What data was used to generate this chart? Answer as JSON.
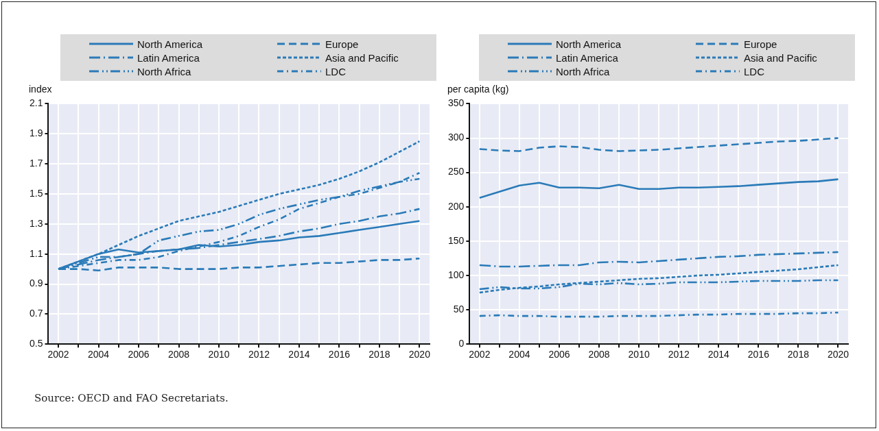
{
  "chart_data": [
    {
      "type": "line",
      "ylabel": "index",
      "legend": "top",
      "grid": true,
      "marker": "none",
      "x": [
        2002,
        2003,
        2004,
        2005,
        2006,
        2007,
        2008,
        2009,
        2010,
        2011,
        2012,
        2013,
        2014,
        2015,
        2016,
        2017,
        2018,
        2019,
        2020
      ],
      "xlim": [
        2001.5,
        2020.5
      ],
      "xticks": [
        2002,
        {
          "value": 2003,
          "label": null
        },
        2004,
        {
          "value": 2005,
          "label": null
        },
        2006,
        {
          "value": 2007,
          "label": null
        },
        2008,
        {
          "value": 2009,
          "label": null
        },
        2010,
        {
          "value": 2011,
          "label": null
        },
        2012,
        {
          "value": 2013,
          "label": null
        },
        2014,
        {
          "value": 2015,
          "label": null
        },
        2016,
        {
          "value": 2017,
          "label": null
        },
        2018,
        {
          "value": 2019,
          "label": null
        },
        2020
      ],
      "ylim": [
        0.5,
        2.1
      ],
      "yticks": [
        0.5,
        0.7,
        0.9,
        1.1,
        1.3,
        1.5,
        1.7,
        1.9,
        2.1
      ],
      "series": [
        {
          "name": "North America",
          "color": "#2a7ab8",
          "line_style": "solid",
          "values": [
            1.0,
            1.05,
            1.1,
            1.13,
            1.11,
            1.12,
            1.13,
            1.16,
            1.15,
            1.16,
            1.18,
            1.19,
            1.21,
            1.22,
            1.24,
            1.26,
            1.28,
            1.3,
            1.32
          ]
        },
        {
          "name": "Europe",
          "color": "#2a7ab8",
          "line_style": "dashed",
          "values": [
            1.0,
            1.0,
            0.99,
            1.01,
            1.01,
            1.01,
            1.0,
            1.0,
            1.0,
            1.01,
            1.01,
            1.02,
            1.03,
            1.04,
            1.04,
            1.05,
            1.06,
            1.06,
            1.07
          ]
        },
        {
          "name": "Latin America",
          "color": "#2a7ab8",
          "line_style": "longdashdot",
          "values": [
            1.0,
            1.03,
            1.06,
            1.08,
            1.1,
            1.12,
            1.13,
            1.14,
            1.16,
            1.18,
            1.2,
            1.22,
            1.25,
            1.27,
            1.3,
            1.32,
            1.35,
            1.37,
            1.4
          ]
        },
        {
          "name": "Asia and Pacific",
          "color": "#2a7ab8",
          "line_style": "dotted",
          "values": [
            1.0,
            1.05,
            1.1,
            1.16,
            1.22,
            1.27,
            1.32,
            1.35,
            1.38,
            1.42,
            1.46,
            1.5,
            1.53,
            1.56,
            1.6,
            1.65,
            1.71,
            1.78,
            1.85
          ]
        },
        {
          "name": "North Africa",
          "color": "#2a7ab8",
          "line_style": "dashdotdot",
          "values": [
            1.0,
            1.04,
            1.08,
            1.08,
            1.1,
            1.19,
            1.22,
            1.25,
            1.26,
            1.3,
            1.36,
            1.4,
            1.43,
            1.46,
            1.48,
            1.52,
            1.55,
            1.58,
            1.6
          ]
        },
        {
          "name": "LDC",
          "color": "#2a7ab8",
          "line_style": "dashdot",
          "values": [
            1.0,
            1.02,
            1.04,
            1.06,
            1.06,
            1.08,
            1.12,
            1.15,
            1.18,
            1.22,
            1.28,
            1.33,
            1.4,
            1.44,
            1.48,
            1.5,
            1.54,
            1.58,
            1.64
          ]
        }
      ],
      "annotations": [
        "Source: OECD and FAO Secretariats."
      ]
    },
    {
      "type": "line",
      "ylabel": "per capita (kg)",
      "legend": "top",
      "grid": true,
      "marker": "none",
      "x": [
        2002,
        2003,
        2004,
        2005,
        2006,
        2007,
        2008,
        2009,
        2010,
        2011,
        2012,
        2013,
        2014,
        2015,
        2016,
        2017,
        2018,
        2019,
        2020
      ],
      "xlim": [
        2001.5,
        2020.5
      ],
      "xticks": [
        2002,
        {
          "value": 2003,
          "label": null
        },
        2004,
        {
          "value": 2005,
          "label": null
        },
        2006,
        {
          "value": 2007,
          "label": null
        },
        2008,
        {
          "value": 2009,
          "label": null
        },
        2010,
        {
          "value": 2011,
          "label": null
        },
        2012,
        {
          "value": 2013,
          "label": null
        },
        2014,
        {
          "value": 2015,
          "label": null
        },
        2016,
        {
          "value": 2017,
          "label": null
        },
        2018,
        {
          "value": 2019,
          "label": null
        },
        2020
      ],
      "ylim": [
        0,
        350
      ],
      "yticks": [
        0,
        50,
        100,
        150,
        200,
        250,
        300,
        350
      ],
      "series": [
        {
          "name": "North America",
          "color": "#2a7ab8",
          "line_style": "solid",
          "values": [
            213,
            222,
            231,
            235,
            228,
            228,
            227,
            232,
            226,
            226,
            228,
            228,
            229,
            230,
            232,
            234,
            236,
            237,
            240
          ]
        },
        {
          "name": "Europe",
          "color": "#2a7ab8",
          "line_style": "dashed",
          "values": [
            284,
            282,
            281,
            286,
            288,
            287,
            283,
            281,
            282,
            283,
            285,
            287,
            289,
            291,
            293,
            295,
            296,
            298,
            300
          ]
        },
        {
          "name": "Latin America",
          "color": "#2a7ab8",
          "line_style": "longdashdot",
          "values": [
            115,
            113,
            113,
            114,
            115,
            115,
            119,
            120,
            119,
            121,
            123,
            125,
            127,
            128,
            130,
            131,
            132,
            133,
            134
          ]
        },
        {
          "name": "Asia and Pacific",
          "color": "#2a7ab8",
          "line_style": "dotted",
          "values": [
            75,
            79,
            82,
            84,
            87,
            89,
            91,
            93,
            95,
            96,
            98,
            100,
            101,
            103,
            105,
            107,
            109,
            112,
            115
          ]
        },
        {
          "name": "North Africa",
          "color": "#2a7ab8",
          "line_style": "dashdotdot",
          "values": [
            80,
            83,
            81,
            81,
            83,
            88,
            87,
            89,
            87,
            88,
            90,
            90,
            90,
            91,
            92,
            92,
            92,
            93,
            93
          ]
        },
        {
          "name": "LDC",
          "color": "#2a7ab8",
          "line_style": "dashdot",
          "values": [
            41,
            42,
            41,
            41,
            40,
            40,
            40,
            41,
            41,
            41,
            42,
            43,
            43,
            44,
            44,
            44,
            45,
            45,
            46
          ]
        }
      ]
    }
  ]
}
